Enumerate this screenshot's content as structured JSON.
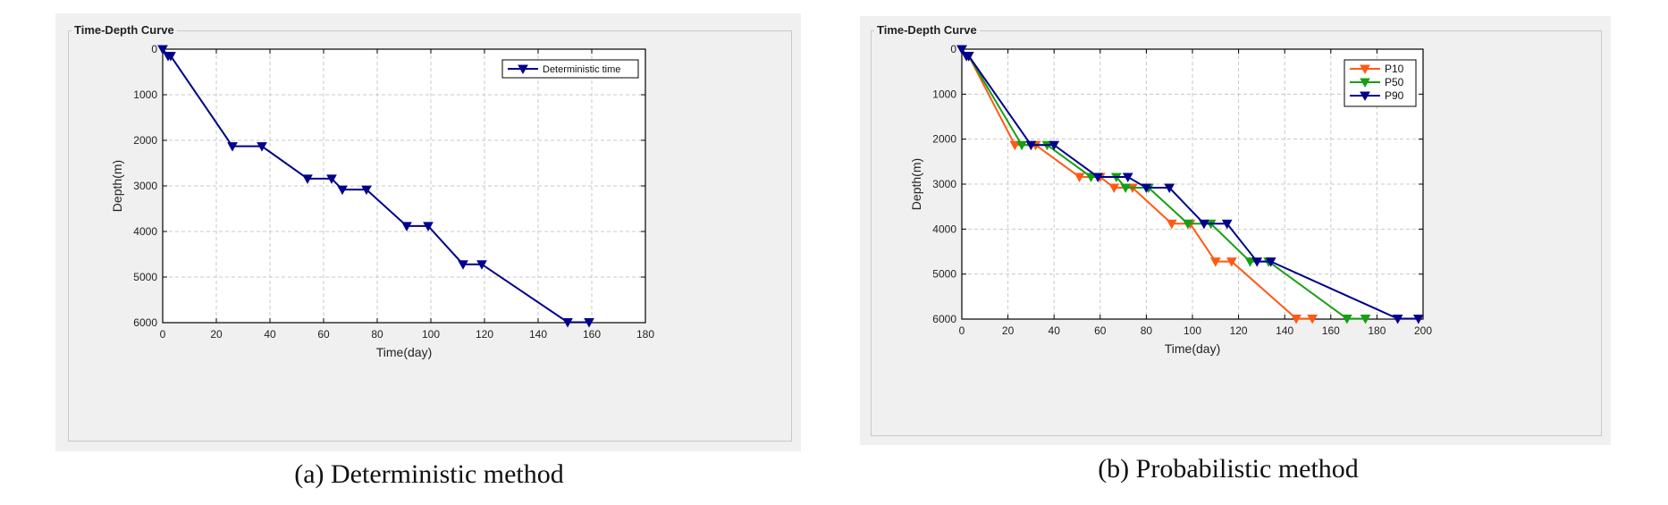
{
  "colors": {
    "deterministic": "#00008b",
    "P10": "#ff5a14",
    "P50": "#14a014",
    "P90": "#00008b"
  },
  "captions": {
    "left": "(a) Deterministic method",
    "right": "(b) Probabilistic method"
  },
  "chart_data": [
    {
      "type": "line",
      "group_title": "Time-Depth Curve",
      "xlabel": "Time(day)",
      "ylabel": "Depth(m)",
      "xlim": [
        0,
        180
      ],
      "ylim": [
        0,
        6000
      ],
      "y_reversed": true,
      "grid": true,
      "legend_position": "top-right",
      "xticks": [
        0,
        20,
        40,
        60,
        80,
        100,
        120,
        140,
        160,
        180
      ],
      "yticks": [
        0,
        1000,
        2000,
        3000,
        4000,
        5000,
        6000
      ],
      "series": [
        {
          "name": "Deterministic time",
          "color_key": "deterministic",
          "x": [
            0,
            2,
            3,
            26,
            37,
            54,
            63,
            67,
            76,
            91,
            99,
            112,
            119,
            151,
            159
          ],
          "y": [
            0,
            150,
            150,
            2130,
            2130,
            2840,
            2840,
            3080,
            3080,
            3880,
            3880,
            4720,
            4720,
            5990,
            5990
          ]
        }
      ]
    },
    {
      "type": "line",
      "group_title": "Time-Depth Curve",
      "xlabel": "Time(day)",
      "ylabel": "Depth(m)",
      "xlim": [
        0,
        200
      ],
      "ylim": [
        0,
        6000
      ],
      "y_reversed": true,
      "grid": true,
      "legend_position": "top-right",
      "xticks": [
        0,
        20,
        40,
        60,
        80,
        100,
        120,
        140,
        160,
        180,
        200
      ],
      "yticks": [
        0,
        1000,
        2000,
        3000,
        4000,
        5000,
        6000
      ],
      "series": [
        {
          "name": "P10",
          "color_key": "P10",
          "x": [
            0,
            2,
            3,
            23,
            32,
            51,
            60,
            66,
            74,
            91,
            99,
            110,
            117,
            145,
            152
          ],
          "y": [
            0,
            150,
            150,
            2130,
            2130,
            2840,
            2840,
            3080,
            3080,
            3880,
            3880,
            4720,
            4720,
            5990,
            5990
          ]
        },
        {
          "name": "P50",
          "color_key": "P50",
          "x": [
            0,
            2,
            3,
            26,
            37,
            56,
            67,
            71,
            81,
            98,
            108,
            125,
            133,
            167,
            175
          ],
          "y": [
            0,
            150,
            150,
            2130,
            2130,
            2840,
            2840,
            3080,
            3080,
            3880,
            3880,
            4720,
            4720,
            5990,
            5990
          ]
        },
        {
          "name": "P90",
          "color_key": "P90",
          "x": [
            0,
            2,
            3,
            30,
            40,
            59,
            72,
            80,
            90,
            105,
            115,
            128,
            134,
            189,
            198
          ],
          "y": [
            0,
            150,
            150,
            2130,
            2130,
            2840,
            2840,
            3080,
            3080,
            3880,
            3880,
            4720,
            4720,
            5990,
            5990
          ]
        }
      ]
    }
  ]
}
